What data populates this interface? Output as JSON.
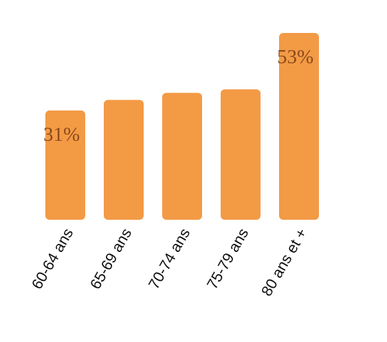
{
  "chart_data": {
    "type": "bar",
    "categories": [
      "60-64 ans",
      "65-69 ans",
      "70-74 ans",
      "75-79 ans",
      "80 ans et +"
    ],
    "values": [
      31,
      34,
      36,
      37,
      53
    ],
    "data_labels": [
      "31%",
      "",
      "",
      "",
      "53%"
    ],
    "ylim": [
      0,
      53
    ],
    "grid": false,
    "colors": {
      "bar": "#F39A45",
      "label": "#8A4A1C"
    }
  }
}
